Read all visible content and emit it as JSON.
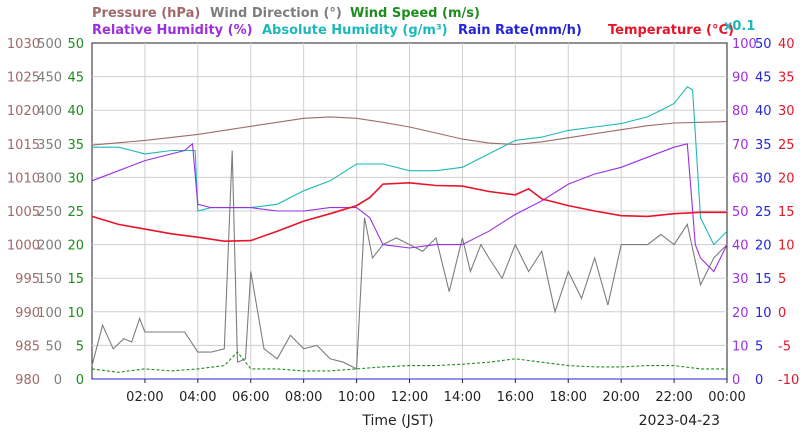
{
  "chart_data": {
    "type": "line",
    "legend": {
      "row1": [
        {
          "text": "Pressure (hPa)",
          "color": "#a06a6a"
        },
        {
          "text": "Wind Direction (°)",
          "color": "#7d7d7d"
        },
        {
          "text": "Wind Speed (m/s)",
          "color": "#1e8c1e"
        }
      ],
      "row2": [
        {
          "text": "Relative Humidity (%)",
          "color": "#9b30e0"
        },
        {
          "text": "Absolute Humidity (g/m³)",
          "color": "#1fb8b8"
        },
        {
          "text": "Rain Rate(mm/h)",
          "color": "#2525d8"
        },
        {
          "text": "Temperature (°C)",
          "color": "#e8152a"
        }
      ],
      "abs_humidity_scale_note": "x0.1"
    },
    "xlabel": "Time (JST)",
    "date": "2023-04-23",
    "x_unit": "hours",
    "xlim": [
      0,
      24
    ],
    "x_ticks": [
      {
        "value": 2,
        "label": "02:00"
      },
      {
        "value": 4,
        "label": "04:00"
      },
      {
        "value": 6,
        "label": "06:00"
      },
      {
        "value": 8,
        "label": "08:00"
      },
      {
        "value": 10,
        "label": "10:00"
      },
      {
        "value": 12,
        "label": "12:00"
      },
      {
        "value": 14,
        "label": "14:00"
      },
      {
        "value": 16,
        "label": "16:00"
      },
      {
        "value": 18,
        "label": "18:00"
      },
      {
        "value": 20,
        "label": "20:00"
      },
      {
        "value": 22,
        "label": "22:00"
      },
      {
        "value": 24,
        "label": "00:00"
      }
    ],
    "axes": {
      "pressure": {
        "color": "#a06a6a",
        "ylim": [
          980,
          1030
        ],
        "ticks": [
          "980",
          "985",
          "990",
          "995",
          "1000",
          "1005",
          "1010",
          "1015",
          "1020",
          "1025",
          "1030"
        ]
      },
      "wind_direction": {
        "color": "#7d7d7d",
        "ylim": [
          0,
          500
        ],
        "ticks": [
          "0",
          "50",
          "100",
          "150",
          "200",
          "250",
          "300",
          "350",
          "400",
          "450",
          "500"
        ]
      },
      "wind_speed": {
        "color": "#1e8c1e",
        "ylim": [
          0,
          50
        ],
        "ticks": [
          "0",
          "5",
          "10",
          "15",
          "20",
          "25",
          "30",
          "35",
          "40",
          "45",
          "50"
        ]
      },
      "relative_humidity": {
        "color": "#9b30e0",
        "ylim": [
          0,
          100
        ],
        "ticks": [
          "0",
          "10",
          "20",
          "30",
          "40",
          "50",
          "60",
          "70",
          "80",
          "90",
          "100"
        ]
      },
      "rain_rate": {
        "color": "#2525d8",
        "ylim": [
          0,
          50
        ],
        "ticks": [
          "0",
          "5",
          "10",
          "15",
          "20",
          "25",
          "30",
          "35",
          "40",
          "45",
          "50"
        ]
      },
      "temperature": {
        "color": "#e8152a",
        "ylim": [
          -10,
          40
        ],
        "ticks": [
          "-10",
          "-5",
          "0",
          "5",
          "10",
          "15",
          "20",
          "25",
          "30",
          "35",
          "40"
        ]
      }
    },
    "series": [
      {
        "key": "pressure",
        "name": "Pressure (hPa)",
        "axis": "pressure",
        "color": "#a06a6a",
        "x": [
          0,
          2,
          4,
          6,
          8,
          9,
          10,
          11,
          12,
          13,
          14,
          15,
          16,
          17,
          18,
          19,
          20,
          21,
          22,
          23,
          24
        ],
        "y": [
          1014.8,
          1015.5,
          1016.4,
          1017.6,
          1018.8,
          1019.0,
          1018.8,
          1018.2,
          1017.5,
          1016.6,
          1015.7,
          1015.1,
          1014.9,
          1015.3,
          1015.9,
          1016.5,
          1017.1,
          1017.7,
          1018.1,
          1018.2,
          1018.3
        ]
      },
      {
        "key": "temperature",
        "name": "Temperature (°C)",
        "axis": "temperature",
        "color": "#e8152a",
        "x": [
          0,
          1,
          2,
          3,
          4,
          5,
          6,
          7,
          8,
          9,
          10,
          10.5,
          11,
          12,
          13,
          14,
          15,
          16,
          16.5,
          17,
          18,
          19,
          20,
          21,
          22,
          23,
          24
        ],
        "y": [
          14.2,
          13.0,
          12.3,
          11.6,
          11.1,
          10.5,
          10.6,
          12.0,
          13.5,
          14.6,
          15.8,
          17.0,
          19.0,
          19.2,
          18.8,
          18.7,
          17.9,
          17.4,
          18.3,
          16.8,
          15.8,
          15.0,
          14.3,
          14.2,
          14.6,
          14.8,
          14.8
        ]
      },
      {
        "key": "relative_humidity",
        "name": "Relative Humidity (%)",
        "axis": "relative_humidity",
        "color": "#9b30e0",
        "x": [
          0,
          1,
          2,
          3,
          3.5,
          3.8,
          4.0,
          4.5,
          5,
          6,
          7,
          8,
          9,
          10,
          10.5,
          11,
          12,
          13,
          14,
          15,
          16,
          17,
          18,
          19,
          20,
          21,
          22,
          22.5,
          22.8,
          23,
          23.5,
          24
        ],
        "y": [
          59,
          62,
          65,
          67,
          68,
          70,
          52,
          51,
          51,
          51,
          50,
          50,
          51,
          51,
          48,
          40,
          39,
          40,
          40,
          44,
          49,
          53,
          58,
          61,
          63,
          66,
          69,
          70,
          40,
          36,
          32,
          40
        ]
      },
      {
        "key": "absolute_humidity",
        "name": "Absolute Humidity (g/m³)",
        "axis": "relative_humidity",
        "color": "#1fb8b8",
        "x": [
          0,
          1,
          2,
          3,
          3.9,
          4.0,
          4.5,
          5,
          6,
          7,
          8,
          9,
          10,
          11,
          12,
          13,
          14,
          15,
          16,
          17,
          18,
          19,
          20,
          21,
          21.5,
          22,
          22.5,
          22.7,
          23,
          23.5,
          24
        ],
        "y": [
          69,
          69,
          67,
          68,
          68,
          50,
          51,
          51,
          51,
          52,
          56,
          59,
          64,
          64,
          62,
          62,
          63,
          67,
          71,
          72,
          74,
          75,
          76,
          78,
          80,
          82,
          87,
          86,
          48,
          40,
          44
        ]
      },
      {
        "key": "wind_direction",
        "name": "Wind Direction (°)",
        "axis": "wind_direction",
        "color": "#7d7d7d",
        "x": [
          0,
          0.4,
          0.8,
          1.2,
          1.5,
          1.8,
          2,
          2.5,
          3,
          3.5,
          4,
          4.5,
          5,
          5.3,
          5.5,
          5.8,
          6,
          6.5,
          7,
          7.5,
          8,
          8.5,
          9,
          9.5,
          10,
          10.3,
          10.6,
          11,
          11.5,
          12,
          12.5,
          13,
          13.5,
          14,
          14.3,
          14.7,
          15,
          15.5,
          16,
          16.5,
          17,
          17.5,
          18,
          18.5,
          19,
          19.5,
          20,
          20.5,
          21,
          21.5,
          22,
          22.5,
          23,
          23.5,
          24
        ],
        "y": [
          20,
          80,
          45,
          60,
          55,
          90,
          70,
          70,
          70,
          70,
          40,
          40,
          45,
          340,
          25,
          30,
          160,
          45,
          30,
          65,
          45,
          50,
          30,
          25,
          15,
          240,
          180,
          200,
          210,
          200,
          190,
          210,
          130,
          210,
          160,
          200,
          180,
          150,
          200,
          160,
          190,
          100,
          160,
          120,
          180,
          110,
          200,
          200,
          200,
          215,
          200,
          230,
          140,
          180,
          200
        ]
      },
      {
        "key": "wind_speed",
        "name": "Wind Speed (m/s)",
        "axis": "wind_speed",
        "color": "#1e8c1e",
        "x": [
          0,
          1,
          2,
          3,
          4,
          5,
          5.5,
          6,
          7,
          8,
          9,
          10,
          11,
          12,
          13,
          14,
          15,
          16,
          17,
          18,
          19,
          20,
          21,
          22,
          23,
          24
        ],
        "y": [
          1.5,
          1.0,
          1.5,
          1.2,
          1.5,
          2.0,
          4.0,
          1.5,
          1.5,
          1.2,
          1.2,
          1.5,
          1.8,
          2.0,
          2.0,
          2.2,
          2.5,
          3.0,
          2.5,
          2.0,
          1.8,
          1.8,
          2.0,
          2.0,
          1.5,
          1.5
        ]
      },
      {
        "key": "rain_rate",
        "name": "Rain Rate(mm/h)",
        "axis": "rain_rate",
        "color": "#2525d8",
        "x": [
          0,
          24
        ],
        "y": [
          0,
          0
        ]
      }
    ]
  }
}
